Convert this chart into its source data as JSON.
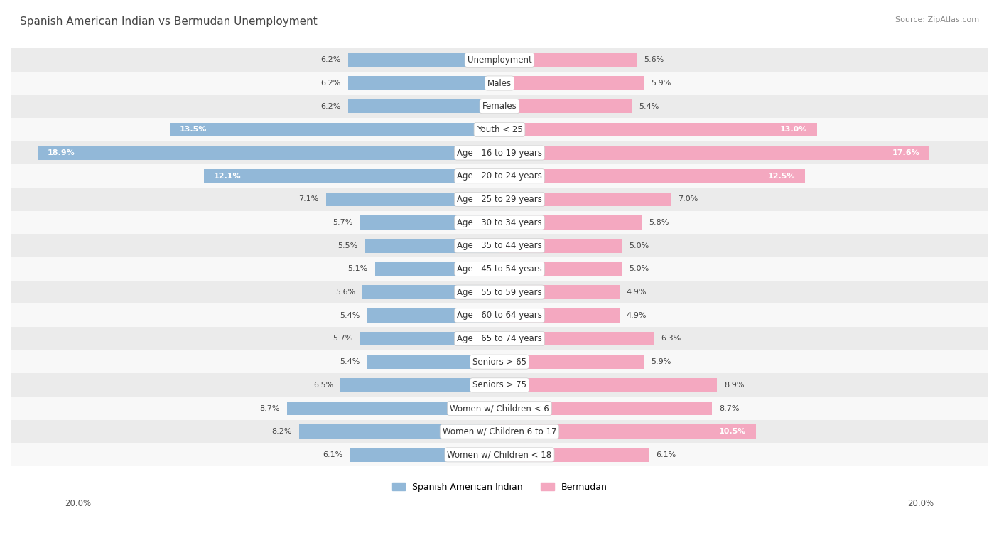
{
  "title": "Spanish American Indian vs Bermudan Unemployment",
  "source": "Source: ZipAtlas.com",
  "categories": [
    "Unemployment",
    "Males",
    "Females",
    "Youth < 25",
    "Age | 16 to 19 years",
    "Age | 20 to 24 years",
    "Age | 25 to 29 years",
    "Age | 30 to 34 years",
    "Age | 35 to 44 years",
    "Age | 45 to 54 years",
    "Age | 55 to 59 years",
    "Age | 60 to 64 years",
    "Age | 65 to 74 years",
    "Seniors > 65",
    "Seniors > 75",
    "Women w/ Children < 6",
    "Women w/ Children 6 to 17",
    "Women w/ Children < 18"
  ],
  "left_values": [
    6.2,
    6.2,
    6.2,
    13.5,
    18.9,
    12.1,
    7.1,
    5.7,
    5.5,
    5.1,
    5.6,
    5.4,
    5.7,
    5.4,
    6.5,
    8.7,
    8.2,
    6.1
  ],
  "right_values": [
    5.6,
    5.9,
    5.4,
    13.0,
    17.6,
    12.5,
    7.0,
    5.8,
    5.0,
    5.0,
    4.9,
    4.9,
    6.3,
    5.9,
    8.9,
    8.7,
    10.5,
    6.1
  ],
  "left_color": "#92b8d8",
  "right_color": "#f4a8c0",
  "row_bg_odd": "#ebebeb",
  "row_bg_even": "#f8f8f8",
  "axis_max": 20.0,
  "legend_left": "Spanish American Indian",
  "legend_right": "Bermudan",
  "title_fontsize": 11,
  "label_fontsize": 8.5,
  "value_fontsize": 8,
  "source_fontsize": 8
}
